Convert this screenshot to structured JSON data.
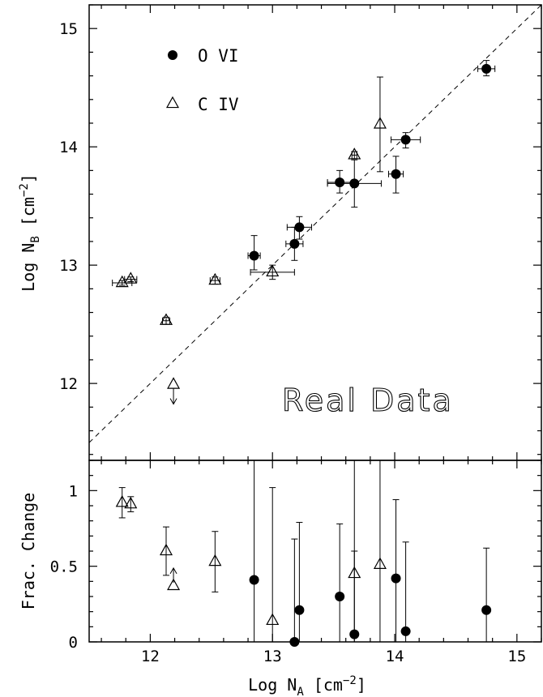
{
  "chart_data": [
    {
      "type": "scatter",
      "xlabel": "",
      "ylabel_parts": [
        "Log N",
        "B",
        " [cm",
        "−2",
        "]"
      ],
      "xlim": [
        11.5,
        15.2
      ],
      "ylim": [
        11.35,
        15.2
      ],
      "x_ticks": [
        12,
        13,
        14,
        15
      ],
      "y_ticks": [
        12,
        13,
        14,
        15
      ],
      "y_tick_labels": [
        "12",
        "13",
        "14",
        "15"
      ],
      "grid": false,
      "reference_line": {
        "style": "dashed",
        "slope": 1,
        "intercept": 0
      },
      "annotation": "Real Data",
      "legend": {
        "placement": "top-left",
        "entries": [
          {
            "label": "O VI",
            "marker": "filled-circle"
          },
          {
            "label": "C IV",
            "marker": "open-triangle"
          }
        ]
      },
      "series": [
        {
          "name": "O VI",
          "marker": "filled-circle",
          "points": [
            {
              "x": 12.85,
              "y": 13.08,
              "xerr": 0.05,
              "yerr_lo": 0.12,
              "yerr_hi": 0.17
            },
            {
              "x": 13.18,
              "y": 13.18,
              "xerr": 0.07,
              "yerr_lo": 0.14,
              "yerr_hi": 0.14
            },
            {
              "x": 13.22,
              "y": 13.32,
              "xerr": 0.1,
              "yerr_lo": 0.1,
              "yerr_hi": 0.09
            },
            {
              "x": 13.55,
              "y": 13.7,
              "xerr": 0.1,
              "yerr_lo": 0.09,
              "yerr_hi": 0.1
            },
            {
              "x": 13.67,
              "y": 13.69,
              "xerr": 0.22,
              "yerr_lo": 0.2,
              "yerr_hi": 0.2
            },
            {
              "x": 14.01,
              "y": 13.77,
              "xerr": 0.06,
              "yerr_lo": 0.16,
              "yerr_hi": 0.15
            },
            {
              "x": 14.09,
              "y": 14.06,
              "xerr": 0.12,
              "yerr_lo": 0.07,
              "yerr_hi": 0.06
            },
            {
              "x": 14.75,
              "y": 14.66,
              "xerr": 0.07,
              "yerr_lo": 0.06,
              "yerr_hi": 0.07
            }
          ]
        },
        {
          "name": "C IV",
          "marker": "open-triangle",
          "points": [
            {
              "x": 11.77,
              "y": 12.85,
              "xerr": 0.08,
              "yerr_lo": 0.02,
              "yerr_hi": 0.02
            },
            {
              "x": 11.84,
              "y": 12.88,
              "xerr": 0.05,
              "yerr_lo": 0.02,
              "yerr_hi": 0.02
            },
            {
              "x": 12.13,
              "y": 12.53,
              "xerr": 0.03,
              "yerr_lo": 0.03,
              "yerr_hi": 0.03
            },
            {
              "x": 12.19,
              "y": 11.99,
              "xerr": 0.0,
              "yerr_lo": 0.0,
              "yerr_hi": 0.0,
              "upper_limit": true
            },
            {
              "x": 12.53,
              "y": 12.87,
              "xerr": 0.04,
              "yerr_lo": 0.03,
              "yerr_hi": 0.03
            },
            {
              "x": 13.0,
              "y": 12.94,
              "xerr": 0.18,
              "yerr_lo": 0.06,
              "yerr_hi": 0.06
            },
            {
              "x": 13.67,
              "y": 13.93,
              "xerr": 0.02,
              "yerr_lo": 0.03,
              "yerr_hi": 0.03
            },
            {
              "x": 13.88,
              "y": 14.19,
              "xerr": 0.0,
              "yerr_lo": 0.4,
              "yerr_hi": 0.4
            }
          ]
        }
      ]
    },
    {
      "type": "scatter",
      "xlabel_parts": [
        "Log N",
        "A",
        " [cm",
        "−2",
        "]"
      ],
      "ylabel": "Frac. Change",
      "xlim": [
        11.5,
        15.2
      ],
      "ylim": [
        0,
        1.2
      ],
      "x_ticks": [
        12,
        13,
        14,
        15
      ],
      "x_tick_labels": [
        "12",
        "13",
        "14",
        "15"
      ],
      "y_ticks": [
        0,
        0.5,
        1
      ],
      "y_tick_labels": [
        "0",
        "0.5",
        "1"
      ],
      "grid": false,
      "series": [
        {
          "name": "O VI",
          "marker": "filled-circle",
          "points": [
            {
              "x": 12.85,
              "y": 0.41,
              "yerr_lo": 0.41,
              "yerr_hi": 0.79
            },
            {
              "x": 13.18,
              "y": 0.0,
              "yerr_lo": 0.0,
              "yerr_hi": 0.68
            },
            {
              "x": 13.22,
              "y": 0.21,
              "yerr_lo": 0.21,
              "yerr_hi": 0.58
            },
            {
              "x": 13.55,
              "y": 0.3,
              "yerr_lo": 0.3,
              "yerr_hi": 0.48
            },
            {
              "x": 13.67,
              "y": 0.05,
              "yerr_lo": 0.05,
              "yerr_hi": 1.15
            },
            {
              "x": 14.01,
              "y": 0.42,
              "yerr_lo": 0.42,
              "yerr_hi": 0.52
            },
            {
              "x": 14.09,
              "y": 0.07,
              "yerr_lo": 0.07,
              "yerr_hi": 0.59
            },
            {
              "x": 14.75,
              "y": 0.21,
              "yerr_lo": 0.21,
              "yerr_hi": 0.41
            }
          ]
        },
        {
          "name": "C IV",
          "marker": "open-triangle",
          "points": [
            {
              "x": 11.77,
              "y": 0.92,
              "yerr_lo": 0.1,
              "yerr_hi": 0.1
            },
            {
              "x": 11.84,
              "y": 0.91,
              "yerr_lo": 0.05,
              "yerr_hi": 0.05
            },
            {
              "x": 12.13,
              "y": 0.6,
              "yerr_lo": 0.16,
              "yerr_hi": 0.16
            },
            {
              "x": 12.19,
              "y": 0.37,
              "yerr_lo": 0.0,
              "yerr_hi": 0.0,
              "lower_limit": true
            },
            {
              "x": 12.53,
              "y": 0.53,
              "yerr_lo": 0.2,
              "yerr_hi": 0.2
            },
            {
              "x": 13.0,
              "y": 0.14,
              "yerr_lo": 0.14,
              "yerr_hi": 0.88
            },
            {
              "x": 13.67,
              "y": 0.45,
              "yerr_lo": 0.45,
              "yerr_hi": 0.15
            },
            {
              "x": 13.88,
              "y": 0.51,
              "yerr_lo": 0.51,
              "yerr_hi": 0.69
            }
          ]
        }
      ]
    }
  ]
}
